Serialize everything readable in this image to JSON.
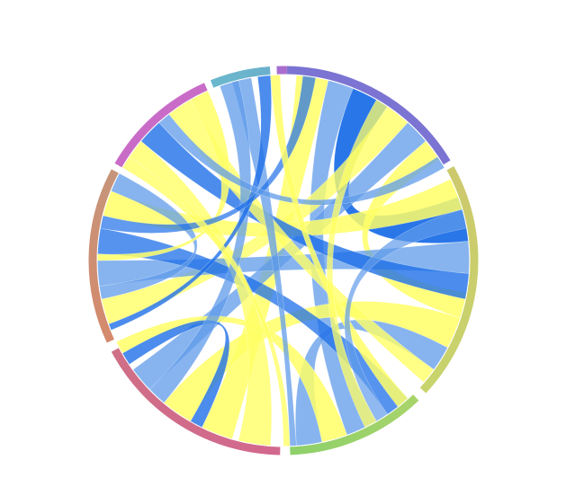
{
  "chord_diagram": {
    "segments": [
      {
        "color_start": "#7b74d2",
        "color_end": "#7b74d2"
      },
      {
        "color_start": "#ccc96c",
        "color_end": "#c8d46c"
      },
      {
        "color_start": "#a8d46a",
        "color_end": "#8ed06a"
      },
      {
        "color_start": "#d2688e",
        "color_end": "#cf6f86"
      },
      {
        "color_start": "#d5896c",
        "color_end": "#c6957a"
      },
      {
        "color_start": "#c96cc7",
        "color_end": "#c96cc7"
      },
      {
        "color_start": "#6ab8cc",
        "color_end": "#6ab0cc"
      },
      {
        "color_start": "#a46fd0",
        "color_end": "#b06acc"
      }
    ],
    "ribbon_colors": {
      "blue": "#1e6fe8",
      "light_blue": "#5f9bea",
      "yellow": "#ffff66"
    }
  }
}
